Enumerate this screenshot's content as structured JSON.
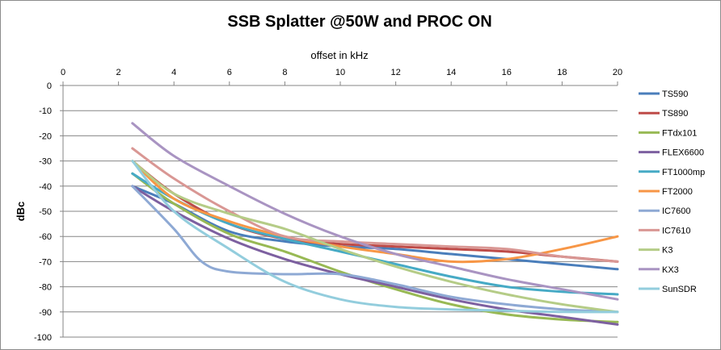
{
  "chart_data": {
    "type": "line",
    "title": "SSB Splatter @50W and PROC ON",
    "xlabel": "offset in kHz",
    "ylabel": "dBc",
    "xlim": [
      0,
      20
    ],
    "ylim": [
      -100,
      0
    ],
    "xticks": [
      0,
      2,
      4,
      6,
      8,
      10,
      12,
      14,
      16,
      18,
      20
    ],
    "yticks": [
      0,
      -10,
      -20,
      -30,
      -40,
      -50,
      -60,
      -70,
      -80,
      -90,
      -100
    ],
    "x_axis_position": "top",
    "grid": "horizontal",
    "legend_position": "right",
    "series": [
      {
        "name": "TS590",
        "color": "#4a7ebb",
        "points": [
          [
            2.5,
            -40
          ],
          [
            4,
            -47
          ],
          [
            6,
            -58
          ],
          [
            8,
            -62
          ],
          [
            10,
            -64
          ],
          [
            12,
            -65
          ],
          [
            14,
            -67
          ],
          [
            16,
            -69
          ],
          [
            18,
            -71
          ],
          [
            20,
            -73
          ]
        ]
      },
      {
        "name": "TS890",
        "color": "#be4b48",
        "points": [
          [
            2.5,
            -30
          ],
          [
            4,
            -43
          ],
          [
            6,
            -55
          ],
          [
            8,
            -61
          ],
          [
            10,
            -63
          ],
          [
            12,
            -64
          ],
          [
            14,
            -65
          ],
          [
            16,
            -66
          ],
          [
            18,
            -68
          ],
          [
            20,
            -70
          ]
        ]
      },
      {
        "name": "FTdx101",
        "color": "#98b954",
        "points": [
          [
            2.5,
            -35
          ],
          [
            4,
            -47
          ],
          [
            6,
            -59
          ],
          [
            8,
            -66
          ],
          [
            10,
            -74
          ],
          [
            12,
            -81
          ],
          [
            14,
            -87
          ],
          [
            16,
            -91
          ],
          [
            18,
            -93
          ],
          [
            20,
            -94
          ]
        ]
      },
      {
        "name": "FLEX6600",
        "color": "#7d60a0",
        "points": [
          [
            2.5,
            -40
          ],
          [
            4,
            -50
          ],
          [
            6,
            -61
          ],
          [
            8,
            -69
          ],
          [
            10,
            -75
          ],
          [
            12,
            -80
          ],
          [
            14,
            -85
          ],
          [
            16,
            -89
          ],
          [
            18,
            -92
          ],
          [
            20,
            -95
          ]
        ]
      },
      {
        "name": "FT1000mp",
        "color": "#46aac5",
        "points": [
          [
            2.5,
            -35
          ],
          [
            4,
            -45
          ],
          [
            6,
            -55
          ],
          [
            8,
            -61
          ],
          [
            10,
            -66
          ],
          [
            12,
            -71
          ],
          [
            14,
            -76
          ],
          [
            16,
            -80
          ],
          [
            18,
            -82
          ],
          [
            20,
            -83
          ]
        ]
      },
      {
        "name": "FT2000",
        "color": "#f79646",
        "points": [
          [
            2.5,
            -30
          ],
          [
            4,
            -45
          ],
          [
            6,
            -54
          ],
          [
            8,
            -60
          ],
          [
            10,
            -64
          ],
          [
            12,
            -67
          ],
          [
            14,
            -70
          ],
          [
            16,
            -69
          ],
          [
            18,
            -65
          ],
          [
            20,
            -60
          ]
        ]
      },
      {
        "name": "IC7600",
        "color": "#8ea9d4",
        "points": [
          [
            2.5,
            -40
          ],
          [
            4,
            -57
          ],
          [
            5,
            -70
          ],
          [
            6,
            -74
          ],
          [
            8,
            -75
          ],
          [
            10,
            -75
          ],
          [
            12,
            -79
          ],
          [
            14,
            -84
          ],
          [
            16,
            -87
          ],
          [
            18,
            -89
          ],
          [
            20,
            -90
          ]
        ]
      },
      {
        "name": "IC7610",
        "color": "#d99794",
        "points": [
          [
            2.5,
            -25
          ],
          [
            4,
            -37
          ],
          [
            6,
            -50
          ],
          [
            8,
            -60
          ],
          [
            10,
            -62
          ],
          [
            12,
            -63
          ],
          [
            14,
            -64
          ],
          [
            16,
            -65
          ],
          [
            18,
            -68
          ],
          [
            20,
            -70
          ]
        ]
      },
      {
        "name": "K3",
        "color": "#b5cc87",
        "points": [
          [
            2.5,
            -30
          ],
          [
            4,
            -43
          ],
          [
            6,
            -51
          ],
          [
            8,
            -57
          ],
          [
            10,
            -65
          ],
          [
            12,
            -72
          ],
          [
            14,
            -78
          ],
          [
            16,
            -83
          ],
          [
            18,
            -87
          ],
          [
            20,
            -90
          ]
        ]
      },
      {
        "name": "KX3",
        "color": "#a994c2",
        "points": [
          [
            2.5,
            -15
          ],
          [
            4,
            -28
          ],
          [
            6,
            -40
          ],
          [
            8,
            -51
          ],
          [
            10,
            -60
          ],
          [
            12,
            -67
          ],
          [
            14,
            -72
          ],
          [
            16,
            -77
          ],
          [
            18,
            -81
          ],
          [
            20,
            -85
          ]
        ]
      },
      {
        "name": "SunSDR",
        "color": "#93cddd",
        "points": [
          [
            2.5,
            -30
          ],
          [
            4,
            -50
          ],
          [
            6,
            -65
          ],
          [
            8,
            -78
          ],
          [
            10,
            -85
          ],
          [
            12,
            -88
          ],
          [
            14,
            -89
          ],
          [
            16,
            -89.5
          ],
          [
            18,
            -90
          ],
          [
            20,
            -90
          ]
        ]
      }
    ]
  }
}
